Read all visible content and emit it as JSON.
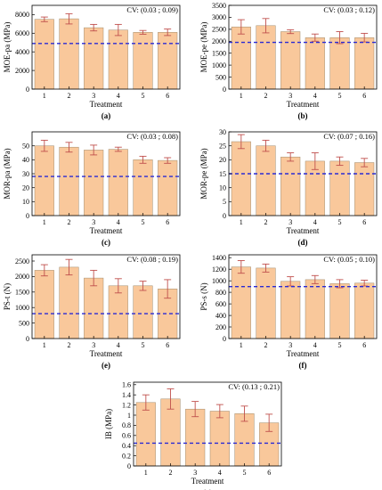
{
  "chart_data": [
    {
      "panel": "(a)",
      "type": "bar",
      "cv": "CV: (0.03 ; 0.09)",
      "ylabel": "MOE-pa (MPa)",
      "xlabel": "Treatment",
      "categories": [
        "1",
        "2",
        "3",
        "4",
        "5",
        "6"
      ],
      "values": [
        7500,
        7550,
        6600,
        6350,
        6100,
        6100
      ],
      "errors": [
        250,
        550,
        350,
        600,
        200,
        350
      ],
      "reference": 4900,
      "ylim": [
        0,
        9000
      ],
      "yticks": [
        0,
        2000,
        4000,
        6000,
        8000
      ]
    },
    {
      "panel": "(b)",
      "type": "bar",
      "cv": "CV: (0.03 ; 0.12)",
      "ylabel": "MOE-pe (MPa)",
      "xlabel": "Treatment",
      "categories": [
        "1",
        "2",
        "3",
        "4",
        "5",
        "6"
      ],
      "values": [
        2600,
        2650,
        2400,
        2150,
        2150,
        2150
      ],
      "errors": [
        300,
        300,
        80,
        150,
        250,
        180
      ],
      "reference": 1950,
      "ylim": [
        0,
        3500
      ],
      "yticks": [
        0,
        500,
        1000,
        1500,
        2000,
        2500,
        3000,
        3500
      ]
    },
    {
      "panel": "(c)",
      "type": "bar",
      "cv": "CV: (0.03 ; 0.08)",
      "ylabel": "MOR-pa (MPa)",
      "xlabel": "Treatment",
      "categories": [
        "1",
        "2",
        "3",
        "4",
        "5",
        "6"
      ],
      "values": [
        50,
        49,
        47,
        47.5,
        40,
        39.5
      ],
      "errors": [
        4,
        3.5,
        3.5,
        1.5,
        2.5,
        2
      ],
      "reference": 28,
      "ylim": [
        0,
        60
      ],
      "yticks": [
        0,
        10,
        20,
        30,
        40,
        50
      ]
    },
    {
      "panel": "(d)",
      "type": "bar",
      "cv": "CV: (0.07 ; 0.16)",
      "ylabel": "MOR-pe (MPa)",
      "xlabel": "Treatment",
      "categories": [
        "1",
        "2",
        "3",
        "4",
        "5",
        "6"
      ],
      "values": [
        26.5,
        25,
        21,
        19.5,
        19.5,
        19
      ],
      "errors": [
        2.5,
        2,
        1.5,
        3,
        1.5,
        1.5
      ],
      "reference": 15,
      "ylim": [
        0,
        30
      ],
      "yticks": [
        0,
        5,
        10,
        15,
        20,
        25,
        30
      ]
    },
    {
      "panel": "(e)",
      "type": "bar",
      "cv": "CV: (0.08 ; 0.19)",
      "ylabel": "PS-t (N)",
      "xlabel": "Treatment",
      "categories": [
        "1",
        "2",
        "3",
        "4",
        "5",
        "6"
      ],
      "values": [
        2200,
        2300,
        1950,
        1700,
        1700,
        1600
      ],
      "errors": [
        180,
        250,
        250,
        230,
        150,
        300
      ],
      "reference": 800,
      "ylim": [
        0,
        2700
      ],
      "yticks": [
        0,
        500,
        1000,
        1500,
        2000,
        2500
      ]
    },
    {
      "panel": "(f)",
      "type": "bar",
      "cv": "CV: (0.05 ; 0.10)",
      "ylabel": "PS-s (N)",
      "xlabel": "Treatment",
      "categories": [
        "1",
        "2",
        "3",
        "4",
        "5",
        "6"
      ],
      "values": [
        1240,
        1220,
        990,
        1020,
        950,
        960
      ],
      "errors": [
        110,
        70,
        80,
        70,
        70,
        50
      ],
      "reference": 900,
      "ylim": [
        0,
        1450
      ],
      "yticks": [
        0,
        200,
        400,
        600,
        800,
        1000,
        1200,
        1400
      ]
    },
    {
      "panel": "(g)",
      "type": "bar",
      "cv": "CV: (0.13 ; 0.21)",
      "ylabel": "IB (MPa)",
      "xlabel": "Treatment",
      "categories": [
        "1",
        "2",
        "3",
        "4",
        "5",
        "6"
      ],
      "values": [
        1.25,
        1.32,
        1.12,
        1.08,
        1.03,
        0.85
      ],
      "errors": [
        0.15,
        0.2,
        0.15,
        0.13,
        0.15,
        0.17
      ],
      "reference": 0.45,
      "ylim": [
        0,
        1.65
      ],
      "yticks": [
        0,
        0.2,
        0.4,
        0.6,
        0.8,
        1.0,
        1.2,
        1.4,
        1.6
      ]
    }
  ]
}
